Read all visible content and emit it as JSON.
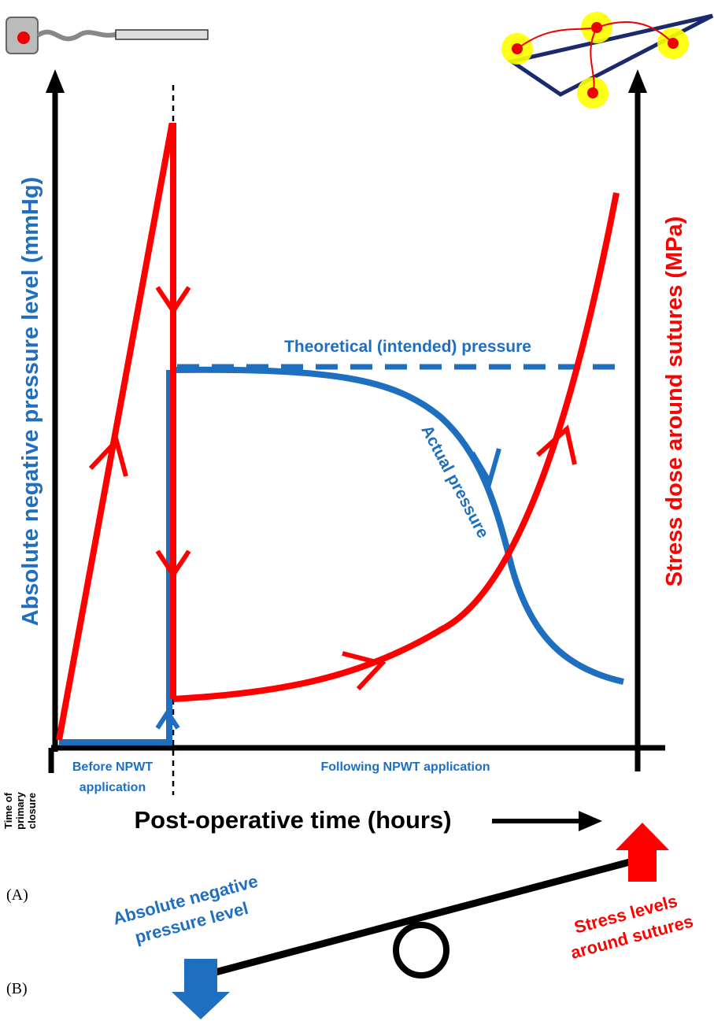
{
  "diagram": {
    "left_axis_label": "Absolute negative pressure level (mmHg)",
    "right_axis_label": "Stress dose around sutures (MPa)",
    "theoretical_label": "Theoretical (intended) pressure",
    "actual_label": "Actual pressure",
    "before_label": [
      "Before NPWT",
      "application"
    ],
    "following_label": "Following NPWT application",
    "closure_label": [
      "Time of",
      "primary",
      "closure"
    ],
    "x_axis_label": "Post-operative time (hours)",
    "panel_a": "(A)",
    "seesaw_left": [
      "Absolute negative",
      "pressure level"
    ],
    "seesaw_right": [
      "Stress levels",
      "around sutures"
    ],
    "panel_b": "(B)"
  }
}
